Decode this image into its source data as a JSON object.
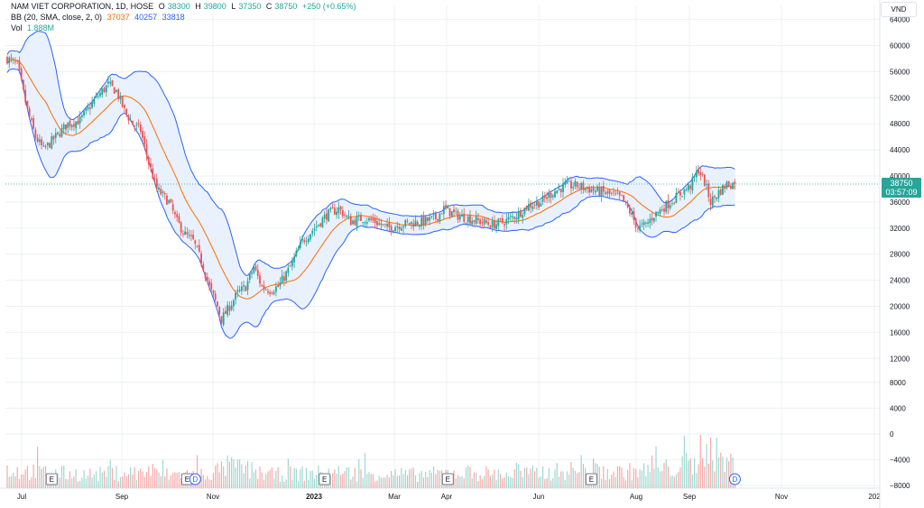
{
  "header": {
    "symbol": "NAM VIET CORPORATION, 1D, HOSE",
    "open_label": "O",
    "open": "38300",
    "high_label": "H",
    "high": "39800",
    "low_label": "L",
    "low": "37350",
    "close_label": "C",
    "close": "38750",
    "change": "+250 (+0.65%)",
    "bb_label": "BB (20, SMA, close, 2, 0)",
    "bb_basis": "37037",
    "bb_upper": "40257",
    "bb_lower": "33818",
    "vol_label": "Vol",
    "vol_value": "1.888M"
  },
  "currency": "VND",
  "last_price_tag": {
    "price": "38750",
    "countdown": "03:57:09"
  },
  "colors": {
    "up": "#26a69a",
    "down": "#ef5350",
    "up_vol": "#9fd8d1",
    "down_vol": "#f7a9a7",
    "bb_band": "#2962ff",
    "bb_basis": "#ff6d00",
    "bb_fill": "#e8f1fd",
    "grid": "#eef0f3",
    "axis_text": "#131722"
  },
  "chart_data": {
    "type": "candlestick",
    "y_axis": {
      "price_ticks": [
        "64000",
        "60000",
        "56000",
        "52000",
        "48000",
        "44000",
        "40000",
        "36000",
        "32000",
        "28000",
        "24000",
        "20000",
        "16000",
        "12000"
      ],
      "volume_ticks": [
        "8000",
        "4000",
        "0",
        "−4000",
        "−8000"
      ]
    },
    "x_axis": {
      "ticks": [
        "Jul",
        "Sep",
        "Nov",
        "2023",
        "Mar",
        "Apr",
        "Jun",
        "Aug",
        "Sep",
        "Nov",
        "202"
      ]
    },
    "last_price": 38750,
    "bollinger": {
      "period": 20,
      "multiplier": 2,
      "basis": 37037,
      "upper": 40257,
      "lower": 33818
    },
    "price_path": [
      [
        0,
        58000
      ],
      [
        5,
        57000
      ],
      [
        10,
        50000
      ],
      [
        14,
        46000
      ],
      [
        18,
        44000
      ],
      [
        24,
        46000
      ],
      [
        30,
        48000
      ],
      [
        36,
        48500
      ],
      [
        44,
        52000
      ],
      [
        50,
        54000
      ],
      [
        54,
        53000
      ],
      [
        58,
        50000
      ],
      [
        62,
        48000
      ],
      [
        66,
        47000
      ],
      [
        70,
        42000
      ],
      [
        74,
        38000
      ],
      [
        80,
        36000
      ],
      [
        84,
        33000
      ],
      [
        88,
        31000
      ],
      [
        92,
        30000
      ],
      [
        96,
        27000
      ],
      [
        100,
        23000
      ],
      [
        104,
        20000
      ],
      [
        106,
        18000
      ],
      [
        110,
        20000
      ],
      [
        114,
        22000
      ],
      [
        118,
        23000
      ],
      [
        122,
        26000
      ],
      [
        126,
        23000
      ],
      [
        130,
        22500
      ],
      [
        134,
        23000
      ],
      [
        140,
        26000
      ],
      [
        146,
        30000
      ],
      [
        152,
        32000
      ],
      [
        158,
        34000
      ],
      [
        164,
        35000
      ],
      [
        170,
        33000
      ],
      [
        176,
        33500
      ],
      [
        182,
        33000
      ],
      [
        188,
        32000
      ],
      [
        194,
        32500
      ],
      [
        200,
        32800
      ],
      [
        206,
        33000
      ],
      [
        212,
        33500
      ],
      [
        216,
        35000
      ],
      [
        222,
        34000
      ],
      [
        228,
        33500
      ],
      [
        234,
        33000
      ],
      [
        240,
        32500
      ],
      [
        246,
        33000
      ],
      [
        252,
        34000
      ],
      [
        258,
        35500
      ],
      [
        264,
        36000
      ],
      [
        270,
        37500
      ],
      [
        276,
        38500
      ],
      [
        282,
        38500
      ],
      [
        288,
        38000
      ],
      [
        294,
        37500
      ],
      [
        300,
        37000
      ],
      [
        304,
        36500
      ],
      [
        308,
        34500
      ],
      [
        312,
        32000
      ],
      [
        316,
        32500
      ],
      [
        320,
        34000
      ],
      [
        326,
        35500
      ],
      [
        332,
        37000
      ],
      [
        338,
        38500
      ],
      [
        342,
        41000
      ],
      [
        345,
        39000
      ],
      [
        348,
        36000
      ],
      [
        352,
        37500
      ],
      [
        356,
        38750
      ]
    ],
    "volume_profile": [
      [
        0,
        0.4
      ],
      [
        20,
        0.35
      ],
      [
        40,
        0.3
      ],
      [
        60,
        0.35
      ],
      [
        80,
        0.3
      ],
      [
        100,
        0.32
      ],
      [
        110,
        0.5
      ],
      [
        130,
        0.3
      ],
      [
        160,
        0.35
      ],
      [
        200,
        0.3
      ],
      [
        230,
        0.35
      ],
      [
        250,
        0.3
      ],
      [
        280,
        0.4
      ],
      [
        300,
        0.35
      ],
      [
        320,
        0.4
      ],
      [
        340,
        0.5
      ],
      [
        344,
        1.0
      ],
      [
        356,
        0.55
      ]
    ],
    "event_markers": [
      {
        "label": "E",
        "bar": 22
      },
      {
        "label": "E",
        "bar": 89
      },
      {
        "label": "D",
        "bar": 93
      },
      {
        "label": "E",
        "bar": 157
      },
      {
        "label": "E",
        "bar": 218
      },
      {
        "label": "E",
        "bar": 289
      },
      {
        "label": "D",
        "bar": 360
      }
    ]
  }
}
